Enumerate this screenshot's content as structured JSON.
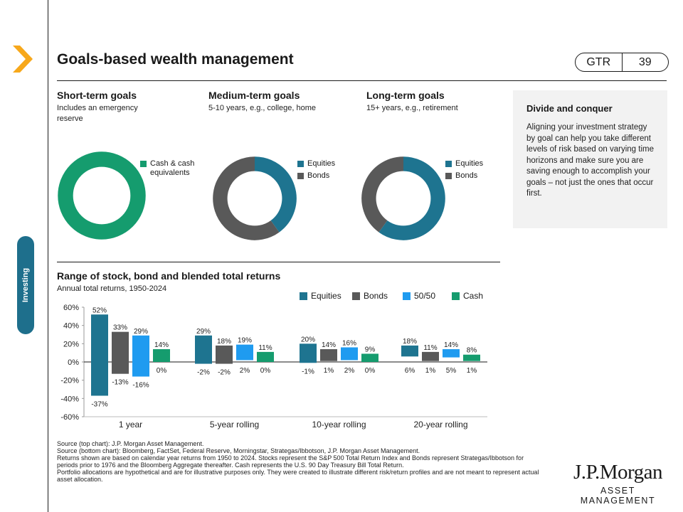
{
  "page": {
    "title": "Goals-based wealth management",
    "gtr_label": "GTR",
    "page_number": "39",
    "side_tab": "Investing"
  },
  "colors": {
    "equities": "#1e7490",
    "bonds": "#595959",
    "blend": "#1f9bf0",
    "cash": "#159c6e",
    "tab": "#1e6f8c",
    "chevron": "#f7a81b"
  },
  "goals": [
    {
      "title": "Short-term goals",
      "subtitle_lines": [
        "Includes an emergency",
        "reserve"
      ],
      "legend": [
        {
          "label_lines": [
            "Cash & cash",
            "equivalents"
          ],
          "color": "#159c6e"
        }
      ]
    },
    {
      "title": "Medium-term goals",
      "subtitle_lines": [
        "5-10 years, e.g., college, home"
      ],
      "legend": [
        {
          "label_lines": [
            "Equities"
          ],
          "color": "#1e7490"
        },
        {
          "label_lines": [
            "Bonds"
          ],
          "color": "#595959"
        }
      ]
    },
    {
      "title": "Long-term goals",
      "subtitle_lines": [
        "15+ years, e.g., retirement"
      ],
      "legend": [
        {
          "label_lines": [
            "Equities"
          ],
          "color": "#1e7490"
        },
        {
          "label_lines": [
            "Bonds"
          ],
          "color": "#595959"
        }
      ]
    }
  ],
  "callout": {
    "title": "Divide and conquer",
    "body": "Aligning your investment strategy by goal can help you take different levels of risk based on varying time horizons and make sure you are saving enough to accomplish your goals – not just the ones that occur first."
  },
  "chart_data": [
    {
      "type": "pie",
      "subtype": "donut",
      "title": "Short-term goals",
      "slices": [
        {
          "label": "Cash & cash equivalents",
          "value": 100
        }
      ]
    },
    {
      "type": "pie",
      "subtype": "donut",
      "title": "Medium-term goals",
      "slices": [
        {
          "label": "Equities",
          "value": 40
        },
        {
          "label": "Bonds",
          "value": 60
        }
      ]
    },
    {
      "type": "pie",
      "subtype": "donut",
      "title": "Long-term goals",
      "slices": [
        {
          "label": "Equities",
          "value": 60
        },
        {
          "label": "Bonds",
          "value": 40
        }
      ]
    },
    {
      "type": "bar",
      "subtype": "floating-range",
      "title": "Range of stock, bond and blended total returns",
      "subtitle": "Annual total returns, 1950-2024",
      "categories": [
        "1 year",
        "5-year rolling",
        "10-year rolling",
        "20-year rolling"
      ],
      "ylim": [
        -60,
        60
      ],
      "yticks": [
        60,
        40,
        20,
        0,
        -20,
        -40,
        -60
      ],
      "ytick_labels": [
        "60%",
        "40%",
        "20%",
        "0%",
        "-20%",
        "-40%",
        "-60%"
      ],
      "legend_position": "top-right",
      "series": [
        {
          "name": "Equities",
          "max": [
            52,
            29,
            20,
            18
          ],
          "min": [
            -37,
            -2,
            -1,
            6
          ],
          "max_labels": [
            "52%",
            "29%",
            "20%",
            "18%"
          ],
          "min_labels": [
            "-37%",
            "-2%",
            "-1%",
            "6%"
          ]
        },
        {
          "name": "Bonds",
          "max": [
            33,
            18,
            14,
            11
          ],
          "min": [
            -13,
            -2,
            1,
            1
          ],
          "max_labels": [
            "33%",
            "18%",
            "14%",
            "11%"
          ],
          "min_labels": [
            "-13%",
            "-2%",
            "1%",
            "1%"
          ]
        },
        {
          "name": "50/50",
          "max": [
            29,
            19,
            16,
            14
          ],
          "min": [
            -16,
            2,
            2,
            5
          ],
          "max_labels": [
            "29%",
            "19%",
            "16%",
            "14%"
          ],
          "min_labels": [
            "-16%",
            "2%",
            "2%",
            "5%"
          ]
        },
        {
          "name": "Cash",
          "max": [
            14,
            11,
            9,
            8
          ],
          "min": [
            0,
            0,
            0,
            1
          ],
          "max_labels": [
            "14%",
            "11%",
            "9%",
            "8%"
          ],
          "min_labels": [
            "0%",
            "0%",
            "0%",
            "1%"
          ]
        }
      ]
    }
  ],
  "source": [
    "Source (top chart): J.P. Morgan Asset Management.",
    "Source (bottom chart): Bloomberg, FactSet, Federal Reserve, Morningstar, Strategas/Ibbotson, J.P. Morgan Asset Management.",
    "Returns shown are based on calendar year returns from 1950 to 2024. Stocks represent the S&P 500 Total Return Index and Bonds represent Strategas/Ibbotson for periods prior to 1976 and the Bloomberg Aggregate thereafter. Cash represents the U.S. 90 Day Treasury Bill Total Return.",
    "Portfolio allocations are hypothetical and are for illustrative purposes only. They were created to illustrate different risk/return profiles and are not meant to represent actual asset allocation."
  ],
  "logo": {
    "line1": "J.P.Morgan",
    "line2": "ASSET MANAGEMENT"
  }
}
